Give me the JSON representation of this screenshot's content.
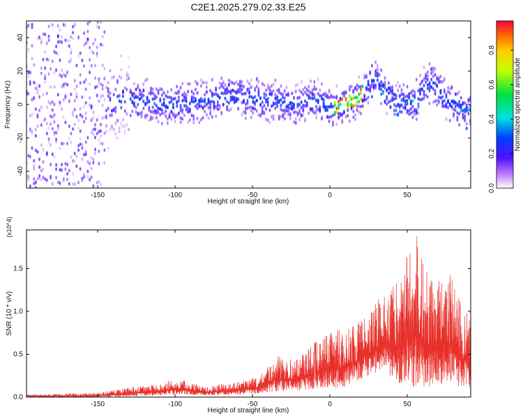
{
  "title": "C2E1.2025.279.02.33.E25",
  "chart_data": [
    {
      "type": "heatmap",
      "xlabel": "Height of straight line (km)",
      "ylabel": "Frequency (Hz)",
      "xlim": [
        -196,
        91
      ],
      "ylim": [
        -50,
        50
      ],
      "xticks": [
        -150,
        -100,
        -50,
        0,
        50
      ],
      "yticks": [
        -40,
        -20,
        0,
        20,
        40
      ],
      "colorbar": {
        "label": "Normalized spectral amplitude",
        "range": [
          0.0,
          0.97
        ],
        "ticks": [
          0.0,
          0.2,
          0.4,
          0.6,
          0.8
        ],
        "tick_labels": [
          "0.0",
          "0.2",
          "0.4",
          "0.6",
          "0.8"
        ]
      },
      "ridge": {
        "x": [
          -196,
          -160,
          -145,
          -130,
          -100,
          -70,
          -60,
          -40,
          -25,
          -10,
          0,
          10,
          20,
          28,
          35,
          45,
          55,
          65,
          75,
          85,
          91
        ],
        "freq": [
          0,
          0,
          2,
          3,
          0,
          4,
          5,
          2,
          0,
          3,
          -2,
          0,
          5,
          18,
          8,
          0,
          2,
          14,
          3,
          -2,
          -5
        ]
      },
      "peak": {
        "x_range": [
          2,
          22
        ],
        "freq_range": [
          -2,
          6
        ],
        "amplitude": 0.95
      }
    },
    {
      "type": "line",
      "color": "#e8302a",
      "xlabel": "Height of straight line (km)",
      "ylabel": "SNR (10 * v/v)",
      "y_multiplier": "(x10^4)",
      "xlim": [
        -196,
        91
      ],
      "ylim": [
        0.0,
        1.95
      ],
      "xticks": [
        -150,
        -100,
        -50,
        0,
        50
      ],
      "yticks": [
        0.0,
        0.5,
        1.0,
        1.5
      ],
      "ytick_labels": [
        "0.0",
        "0.5",
        "1.0",
        "1.5"
      ],
      "envelope": {
        "x": [
          -196,
          -150,
          -125,
          -110,
          -100,
          -80,
          -60,
          -45,
          -35,
          -20,
          -5,
          5,
          15,
          25,
          35,
          45,
          55,
          65,
          75,
          85,
          91
        ],
        "upper": [
          0.03,
          0.05,
          0.12,
          0.15,
          0.22,
          0.12,
          0.18,
          0.25,
          0.48,
          0.45,
          0.72,
          0.78,
          0.82,
          0.95,
          1.25,
          1.35,
          1.95,
          1.35,
          1.62,
          1.1,
          1.0
        ],
        "lower": [
          0.0,
          0.0,
          0.01,
          0.02,
          0.03,
          0.02,
          0.03,
          0.04,
          0.06,
          0.08,
          0.1,
          0.1,
          0.15,
          0.25,
          0.3,
          0.15,
          0.1,
          0.12,
          0.15,
          0.1,
          0.1
        ]
      }
    }
  ]
}
